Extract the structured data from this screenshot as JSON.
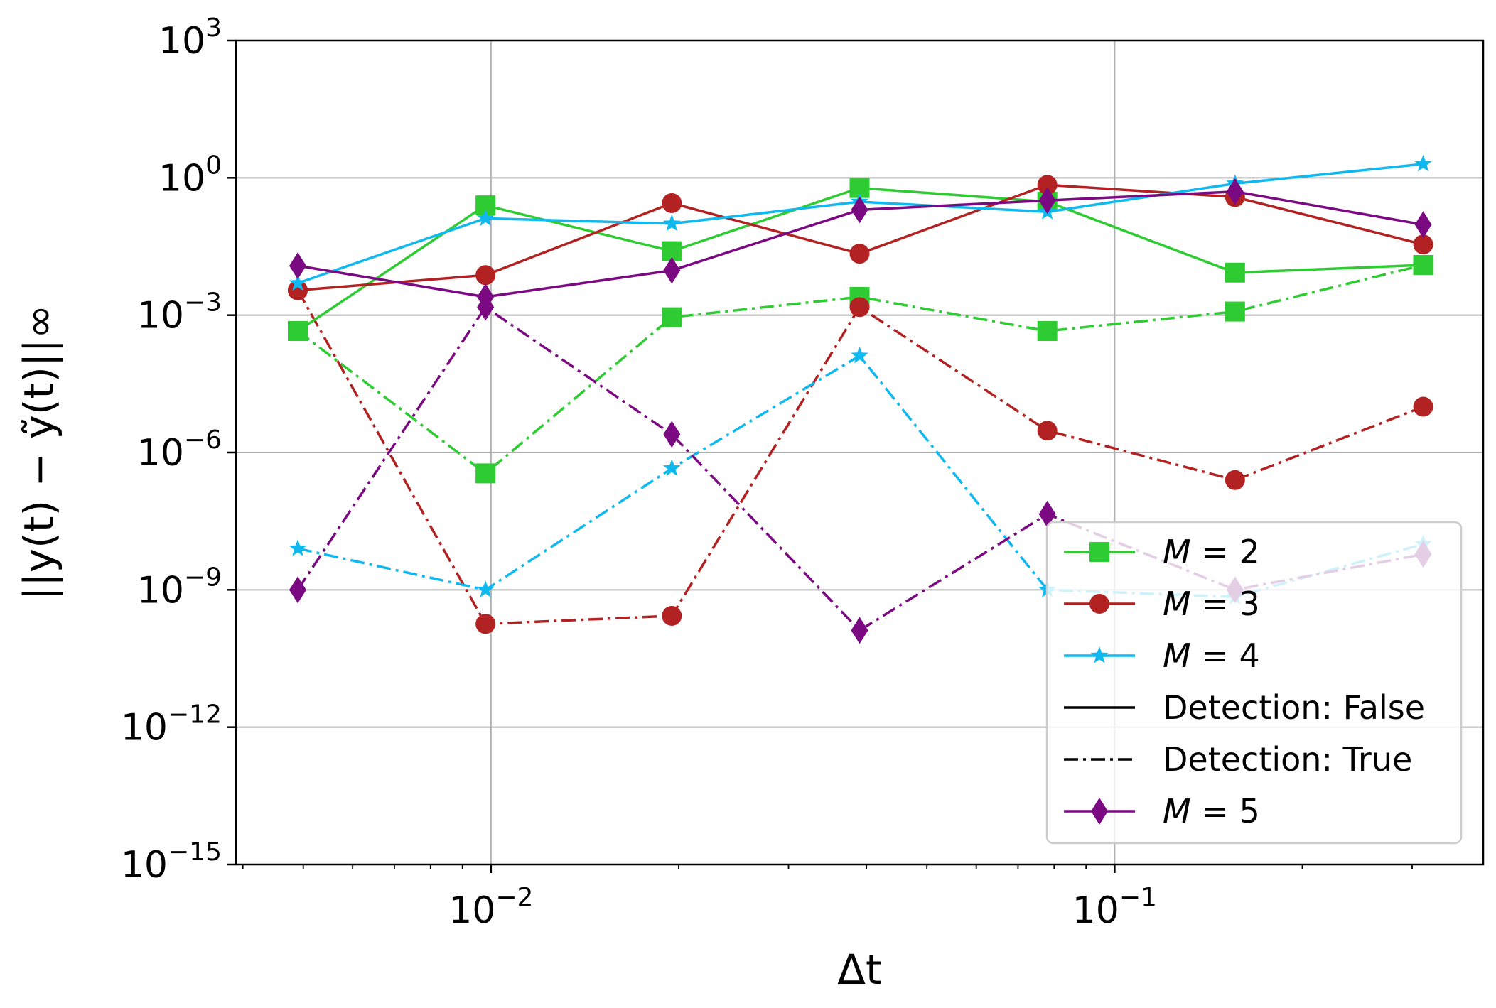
{
  "chart_data": {
    "type": "line",
    "xscale": "log",
    "yscale": "log",
    "xlabel": "Δt",
    "ylabel": "||y(t) − ỹ(t)||∞",
    "xlim": [
      0.0039,
      0.39
    ],
    "ylim": [
      1e-15,
      1000
    ],
    "grid": true,
    "x_ticks": [
      {
        "value": 0.01,
        "base": "10",
        "exp": "−2"
      },
      {
        "value": 0.1,
        "base": "10",
        "exp": "−1"
      }
    ],
    "y_ticks": [
      {
        "value": 1e-15,
        "base": "10",
        "exp": "−15"
      },
      {
        "value": 1e-12,
        "base": "10",
        "exp": "−12"
      },
      {
        "value": 1e-09,
        "base": "10",
        "exp": "−9"
      },
      {
        "value": 1e-06,
        "base": "10",
        "exp": "−6"
      },
      {
        "value": 0.001,
        "base": "10",
        "exp": "−3"
      },
      {
        "value": 1,
        "base": "10",
        "exp": "0"
      },
      {
        "value": 1000,
        "base": "10",
        "exp": "3"
      }
    ],
    "x": [
      0.0049,
      0.0098,
      0.0195,
      0.039,
      0.078,
      0.156,
      0.3125
    ],
    "series": [
      {
        "name": "M = 2",
        "detection": "False",
        "color": "#2ecc32",
        "marker": "square",
        "linestyle": "solid",
        "values": [
          0.00045,
          0.25,
          0.025,
          0.6,
          0.3,
          0.0085,
          0.0125
        ]
      },
      {
        "name": "M = 3",
        "detection": "False",
        "color": "#b22222",
        "marker": "circle",
        "linestyle": "solid",
        "values": [
          0.0035,
          0.0075,
          0.28,
          0.022,
          0.7,
          0.38,
          0.035
        ]
      },
      {
        "name": "M = 4",
        "detection": "False",
        "color": "#10b8f0",
        "marker": "star",
        "linestyle": "solid",
        "values": [
          0.005,
          0.13,
          0.1,
          0.3,
          0.18,
          0.75,
          2.0
        ]
      },
      {
        "name": "M = 5",
        "detection": "False",
        "color": "#7b0a82",
        "marker": "diamond",
        "linestyle": "solid",
        "values": [
          0.012,
          0.0025,
          0.0095,
          0.2,
          0.32,
          0.5,
          0.095
        ]
      },
      {
        "name": "M = 2",
        "detection": "True",
        "color": "#2ecc32",
        "marker": "square",
        "linestyle": "dashdot",
        "values": [
          0.00045,
          3.5e-07,
          0.0009,
          0.0025,
          0.00045,
          0.0012,
          0.0125
        ]
      },
      {
        "name": "M = 3",
        "detection": "True",
        "color": "#b22222",
        "marker": "circle",
        "linestyle": "dashdot",
        "values": [
          0.0035,
          1.8e-10,
          2.7e-10,
          0.0015,
          3e-06,
          2.5e-07,
          1e-05
        ]
      },
      {
        "name": "M = 4",
        "detection": "True",
        "color": "#10b8f0",
        "marker": "star",
        "linestyle": "dashdot",
        "values": [
          8e-09,
          1e-09,
          4.5e-07,
          0.00013,
          1e-09,
          7e-10,
          1e-08
        ]
      },
      {
        "name": "M = 5",
        "detection": "True",
        "color": "#7b0a82",
        "marker": "diamond",
        "linestyle": "dashdot",
        "values": [
          1e-09,
          0.0015,
          2.5e-06,
          1.3e-10,
          4.5e-08,
          1e-09,
          6e-09
        ]
      }
    ],
    "legend": {
      "placement": "lower-right",
      "entries": [
        {
          "label_prefix": "M",
          "label_suffix": " = 2",
          "color": "#2ecc32",
          "marker": "square",
          "linestyle": "solid"
        },
        {
          "label_prefix": "M",
          "label_suffix": " = 3",
          "color": "#b22222",
          "marker": "circle",
          "linestyle": "solid"
        },
        {
          "label_prefix": "M",
          "label_suffix": " = 4",
          "color": "#10b8f0",
          "marker": "star",
          "linestyle": "solid"
        },
        {
          "label_prefix": "",
          "label_suffix": "Detection: False",
          "color": "#000000",
          "marker": "none",
          "linestyle": "solid"
        },
        {
          "label_prefix": "",
          "label_suffix": "Detection: True",
          "color": "#000000",
          "marker": "none",
          "linestyle": "dashdot"
        },
        {
          "label_prefix": "M",
          "label_suffix": " = 5",
          "color": "#7b0a82",
          "marker": "diamond",
          "linestyle": "solid"
        }
      ]
    }
  }
}
